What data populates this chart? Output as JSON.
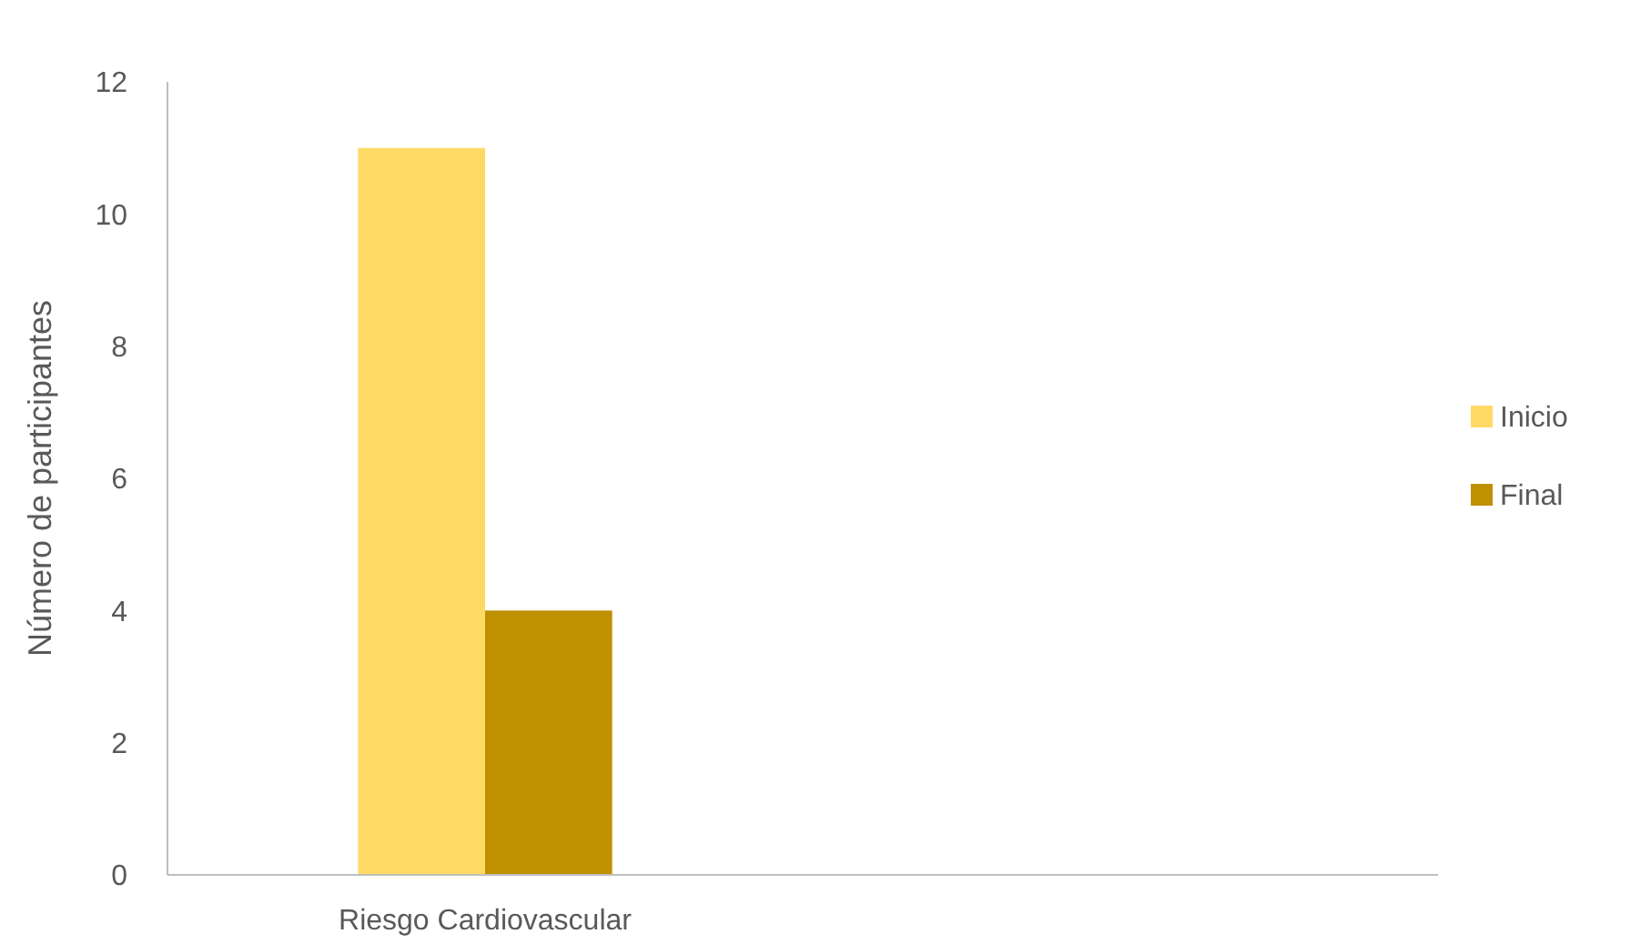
{
  "chart_data": {
    "type": "bar",
    "ylabel": "Número de participantes",
    "categories": [
      "Riesgo Cardiovascular",
      null
    ],
    "series": [
      {
        "name": "Inicio",
        "color": "#ffd966",
        "values": [
          11,
          null
        ]
      },
      {
        "name": "Final",
        "color": "#bf9000",
        "values": [
          4,
          null
        ]
      }
    ],
    "ylim": [
      0,
      12
    ],
    "yticks": [
      0,
      2,
      4,
      6,
      8,
      10,
      12
    ],
    "grid": false,
    "legend": "right"
  }
}
